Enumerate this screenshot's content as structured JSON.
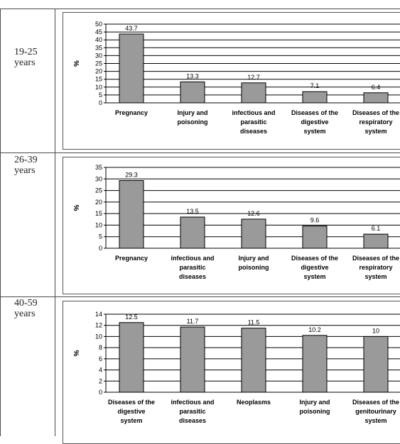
{
  "rows": [
    {
      "label": "19-25\nyears"
    },
    {
      "label": "26-39\nyears"
    },
    {
      "label": "40-59\nyears"
    }
  ],
  "chart_data": [
    {
      "type": "bar",
      "ylabel": "%",
      "ylim": [
        0,
        50
      ],
      "yticks": [
        0,
        5,
        10,
        15,
        20,
        25,
        30,
        35,
        40,
        45,
        50
      ],
      "grid": true,
      "bar_color": "#9a9a9a",
      "categories": [
        "Pregnancy",
        "Injury and\npoisoning",
        "infectious and\nparasitic\ndiseases",
        "Diseases of the\ndigestive\nsystem",
        "Diseases of the\nrespiratory\nsystem"
      ],
      "values": [
        43.7,
        13.3,
        12.7,
        7.1,
        6.4
      ],
      "value_labels": [
        "43.7",
        "13.3",
        "12.7",
        "7.1",
        "6.4"
      ]
    },
    {
      "type": "bar",
      "ylabel": "%",
      "ylim": [
        0,
        35
      ],
      "yticks": [
        0,
        5,
        10,
        15,
        20,
        25,
        30,
        35
      ],
      "grid": true,
      "bar_color": "#9a9a9a",
      "categories": [
        "Pregnancy",
        "infectious and\nparasitic\ndiseases",
        "Injury and\npoisoning",
        "Diseases of the\ndigestive\nsystem",
        "Diseases of the\nrespiratory\nsystem"
      ],
      "values": [
        29.3,
        13.5,
        12.6,
        9.6,
        6.1
      ],
      "value_labels": [
        "29.3",
        "13.5",
        "12.6",
        "9.6",
        "6.1"
      ]
    },
    {
      "type": "bar",
      "ylabel": "%",
      "ylim": [
        0,
        14
      ],
      "yticks": [
        0,
        2,
        4,
        6,
        8,
        10,
        12,
        14
      ],
      "grid": true,
      "bar_color": "#9a9a9a",
      "categories": [
        "Diseases of the\ndigestive\nsystem",
        "infectious and\nparasitic\ndiseases",
        "Neoplasms",
        "Injury and\npoisoning",
        "Diseases of the\ngenitourinary\nsystem"
      ],
      "values": [
        12.5,
        11.7,
        11.5,
        10.2,
        10
      ],
      "value_labels": [
        "12.5",
        "11.7",
        "11.5",
        "10.2",
        "10"
      ]
    }
  ]
}
